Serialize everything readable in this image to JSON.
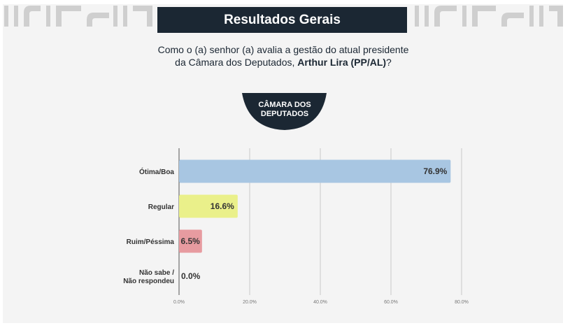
{
  "header": {
    "title": "Resultados Gerais"
  },
  "question": {
    "line1": "Como o (a) senhor (a) avalia a gestão do atual presidente",
    "line2_prefix": "da Câmara dos Deputados, ",
    "line2_bold": "Arthur Lira (PP/AL)",
    "line2_suffix": "?"
  },
  "badge": {
    "line1": "CÂMARA DOS",
    "line2": "DEPUTADOS"
  },
  "colors": {
    "title_bar": "#1b2733",
    "badge": "#1b2733",
    "deco": "#cfcfcf"
  },
  "chart_data": {
    "type": "bar",
    "orientation": "horizontal",
    "categories": [
      [
        "Ótima/Boa"
      ],
      [
        "Regular"
      ],
      [
        "Ruim/Péssima"
      ],
      [
        "Não sabe /",
        "Não respondeu"
      ]
    ],
    "values": [
      76.9,
      16.6,
      6.5,
      0.0
    ],
    "value_labels": [
      "76.9%",
      "16.6%",
      "6.5%",
      "0.0%"
    ],
    "bar_colors": [
      "#a8c6e2",
      "#eaf08a",
      "#e79ba0",
      "#d9d9d9"
    ],
    "xlim": [
      0,
      80
    ],
    "xticks": [
      0,
      20,
      40,
      60,
      80
    ],
    "xtick_labels": [
      "0.0%",
      "20.0%",
      "40.0%",
      "60.0%",
      "80.0%"
    ],
    "grid": true
  }
}
